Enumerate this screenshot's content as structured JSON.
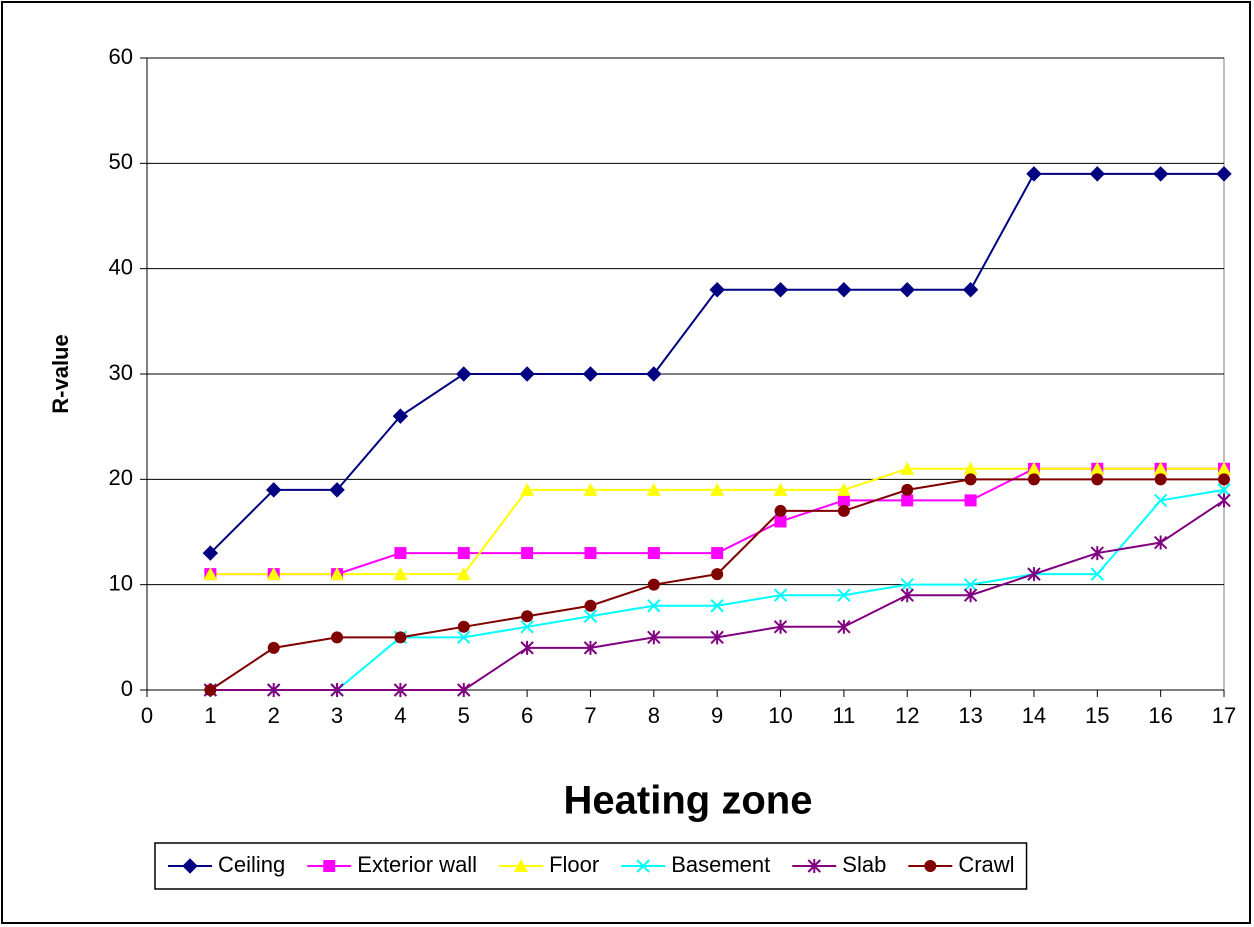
{
  "chart_data": {
    "type": "line",
    "x_label": "Heating zone",
    "y_label": "R-value",
    "x": [
      1,
      2,
      3,
      4,
      5,
      6,
      7,
      8,
      9,
      10,
      11,
      12,
      13,
      14,
      15,
      16,
      17
    ],
    "series": [
      {
        "name": "Ceiling",
        "color": "#000080",
        "marker": "diamond",
        "values": [
          13,
          19,
          19,
          26,
          30,
          30,
          30,
          30,
          38,
          38,
          38,
          38,
          38,
          49,
          49,
          49,
          49
        ]
      },
      {
        "name": "Exterior wall",
        "color": "#ff00ff",
        "marker": "square",
        "values": [
          11,
          11,
          11,
          13,
          13,
          13,
          13,
          13,
          13,
          16,
          18,
          18,
          18,
          21,
          21,
          21,
          21
        ]
      },
      {
        "name": "Floor",
        "color": "#ffff00",
        "marker": "triangle",
        "values": [
          11,
          11,
          11,
          11,
          11,
          19,
          19,
          19,
          19,
          19,
          19,
          21,
          21,
          21,
          21,
          21,
          21
        ]
      },
      {
        "name": "Basement",
        "color": "#00ffff",
        "marker": "x",
        "values": [
          0,
          0,
          0,
          5,
          5,
          6,
          7,
          8,
          8,
          9,
          9,
          10,
          10,
          11,
          11,
          18,
          19
        ]
      },
      {
        "name": "Slab",
        "color": "#800080",
        "marker": "star",
        "values": [
          0,
          0,
          0,
          0,
          0,
          4,
          4,
          5,
          5,
          6,
          6,
          9,
          9,
          11,
          13,
          14,
          18
        ]
      },
      {
        "name": "Crawl",
        "color": "#800000",
        "marker": "circle",
        "values": [
          0,
          4,
          5,
          5,
          6,
          7,
          8,
          10,
          11,
          17,
          17,
          19,
          20,
          20,
          20,
          20,
          20
        ]
      }
    ],
    "xlim": [
      0,
      17
    ],
    "xticks": [
      0,
      1,
      2,
      3,
      4,
      5,
      6,
      7,
      8,
      9,
      10,
      11,
      12,
      13,
      14,
      15,
      16,
      17
    ],
    "ylim": [
      0,
      60
    ],
    "yticks": [
      0,
      10,
      20,
      30,
      40,
      50,
      60
    ],
    "grid": true,
    "legend": "bottom"
  }
}
